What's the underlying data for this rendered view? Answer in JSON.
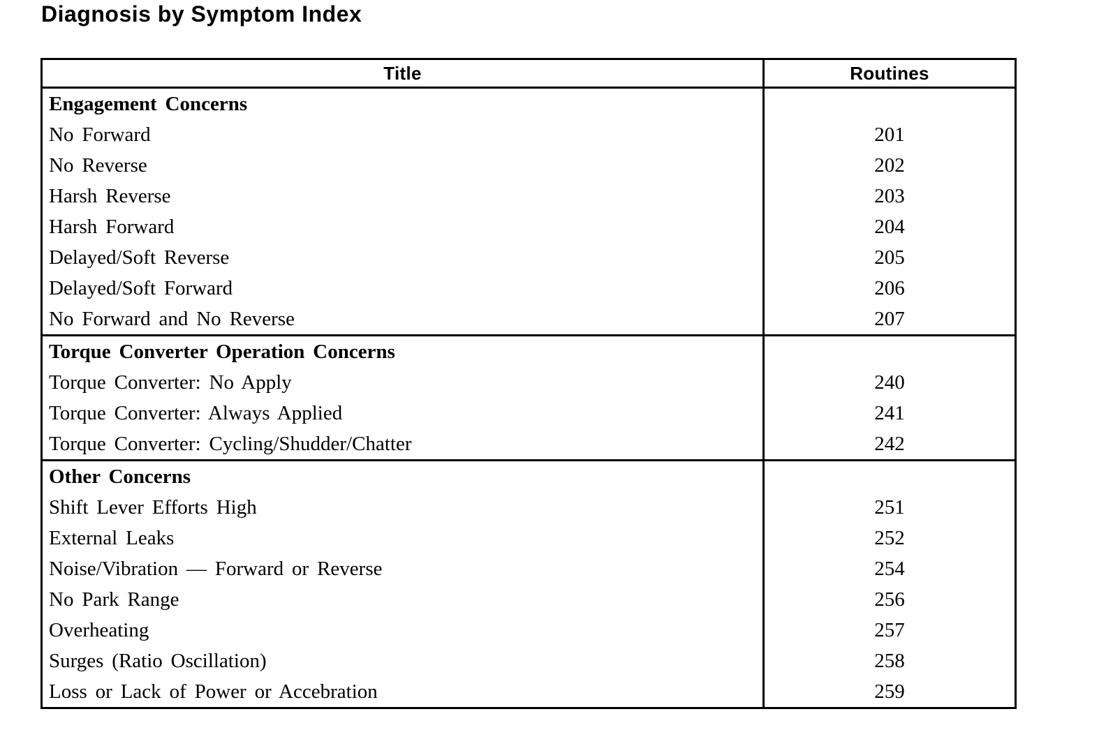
{
  "page_title": "Diagnosis by Symptom Index",
  "colors": {
    "text": "#000000",
    "background": "#ffffff",
    "border": "#000000"
  },
  "table": {
    "columns": [
      "Title",
      "Routines"
    ],
    "sections": [
      {
        "header": "Engagement Concerns",
        "rows": [
          {
            "title": "No Forward",
            "routine": "201"
          },
          {
            "title": "No Reverse",
            "routine": "202"
          },
          {
            "title": "Harsh Reverse",
            "routine": "203"
          },
          {
            "title": "Harsh Forward",
            "routine": "204"
          },
          {
            "title": "Delayed/Soft Reverse",
            "routine": "205"
          },
          {
            "title": "Delayed/Soft Forward",
            "routine": "206"
          },
          {
            "title": "No Forward and No Reverse",
            "routine": "207"
          }
        ]
      },
      {
        "header": "Torque Converter Operation Concerns",
        "rows": [
          {
            "title": "Torque Converter: No Apply",
            "routine": "240"
          },
          {
            "title": "Torque Converter: Always Applied",
            "routine": "241"
          },
          {
            "title": "Torque Converter: Cycling/Shudder/Chatter",
            "routine": "242"
          }
        ]
      },
      {
        "header": "Other Concerns",
        "rows": [
          {
            "title": "Shift Lever Efforts High",
            "routine": "251"
          },
          {
            "title": "External Leaks",
            "routine": "252"
          },
          {
            "title": "Noise/Vibration — Forward or Reverse",
            "routine": "254"
          },
          {
            "title": "No Park Range",
            "routine": "256"
          },
          {
            "title": "Overheating",
            "routine": "257"
          },
          {
            "title": "Surges (Ratio Oscillation)",
            "routine": "258"
          },
          {
            "title": "Loss or Lack of Power or Accebration",
            "routine": "259"
          }
        ]
      }
    ]
  }
}
